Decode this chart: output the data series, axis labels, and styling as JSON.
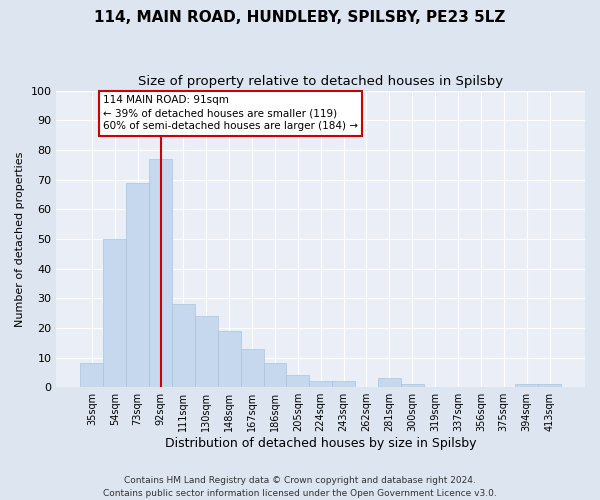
{
  "title": "114, MAIN ROAD, HUNDLEBY, SPILSBY, PE23 5LZ",
  "subtitle": "Size of property relative to detached houses in Spilsby",
  "xlabel": "Distribution of detached houses by size in Spilsby",
  "ylabel": "Number of detached properties",
  "bar_labels": [
    "35sqm",
    "54sqm",
    "73sqm",
    "92sqm",
    "111sqm",
    "130sqm",
    "148sqm",
    "167sqm",
    "186sqm",
    "205sqm",
    "224sqm",
    "243sqm",
    "262sqm",
    "281sqm",
    "300sqm",
    "319sqm",
    "337sqm",
    "356sqm",
    "375sqm",
    "394sqm",
    "413sqm"
  ],
  "bar_values": [
    8,
    50,
    69,
    77,
    28,
    24,
    19,
    13,
    8,
    4,
    2,
    2,
    0,
    3,
    1,
    0,
    0,
    0,
    0,
    1,
    1
  ],
  "bar_color": "#c5d8ed",
  "bar_edge_color": "#a8c4dc",
  "bar_width": 1.0,
  "vline_x_idx": 3,
  "vline_color": "#cc0000",
  "ylim": [
    0,
    100
  ],
  "yticks": [
    0,
    10,
    20,
    30,
    40,
    50,
    60,
    70,
    80,
    90,
    100
  ],
  "annotation_title": "114 MAIN ROAD: 91sqm",
  "annotation_line1": "← 39% of detached houses are smaller (119)",
  "annotation_line2": "60% of semi-detached houses are larger (184) →",
  "annotation_box_color": "#ffffff",
  "annotation_box_edge": "#cc0000",
  "footer1": "Contains HM Land Registry data © Crown copyright and database right 2024.",
  "footer2": "Contains public sector information licensed under the Open Government Licence v3.0.",
  "background_color": "#dde5f0",
  "plot_bg_color": "#eaeff7",
  "grid_color": "#ffffff",
  "title_fontsize": 11,
  "subtitle_fontsize": 9.5
}
